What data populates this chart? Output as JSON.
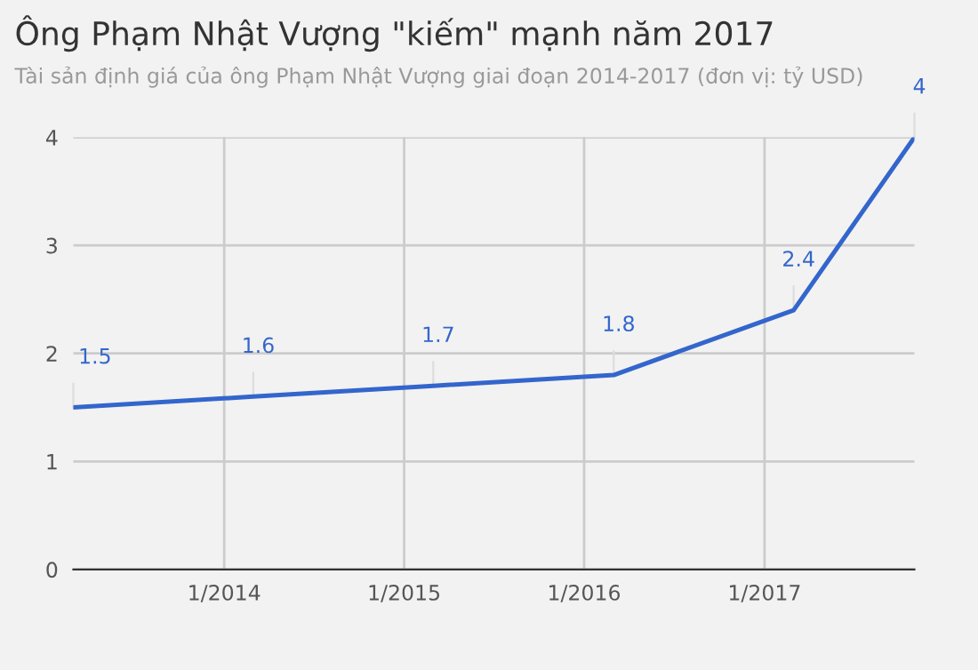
{
  "chart_data": {
    "type": "line",
    "title": "Ông Phạm Nhật Vượng \"kiếm\" mạnh năm 2017",
    "subtitle": "Tài sản định giá của ông Phạm Nhật Vượng giai đoạn 2014-2017 (đơn vị: tỷ USD)",
    "x": [
      "2013-03",
      "2014-03",
      "2015-03",
      "2016-03",
      "2017-03",
      "2017-11"
    ],
    "series": [
      {
        "color": "#3366cc",
        "values": [
          1.5,
          1.6,
          1.7,
          1.8,
          2.4,
          4
        ]
      }
    ],
    "xlim": [
      "2013-03",
      "2017-11"
    ],
    "xticks": [
      {
        "value": "2014-01",
        "label": "1/2014"
      },
      {
        "value": "2015-01",
        "label": "1/2015"
      },
      {
        "value": "2016-01",
        "label": "1/2016"
      },
      {
        "value": "2017-01",
        "label": "1/2017"
      }
    ],
    "ylim": [
      0,
      4
    ],
    "yticks": [
      0,
      1,
      2,
      3,
      4
    ],
    "grid": true,
    "data_labels": true,
    "legend": false,
    "marker": "none",
    "line_style": "solid"
  }
}
